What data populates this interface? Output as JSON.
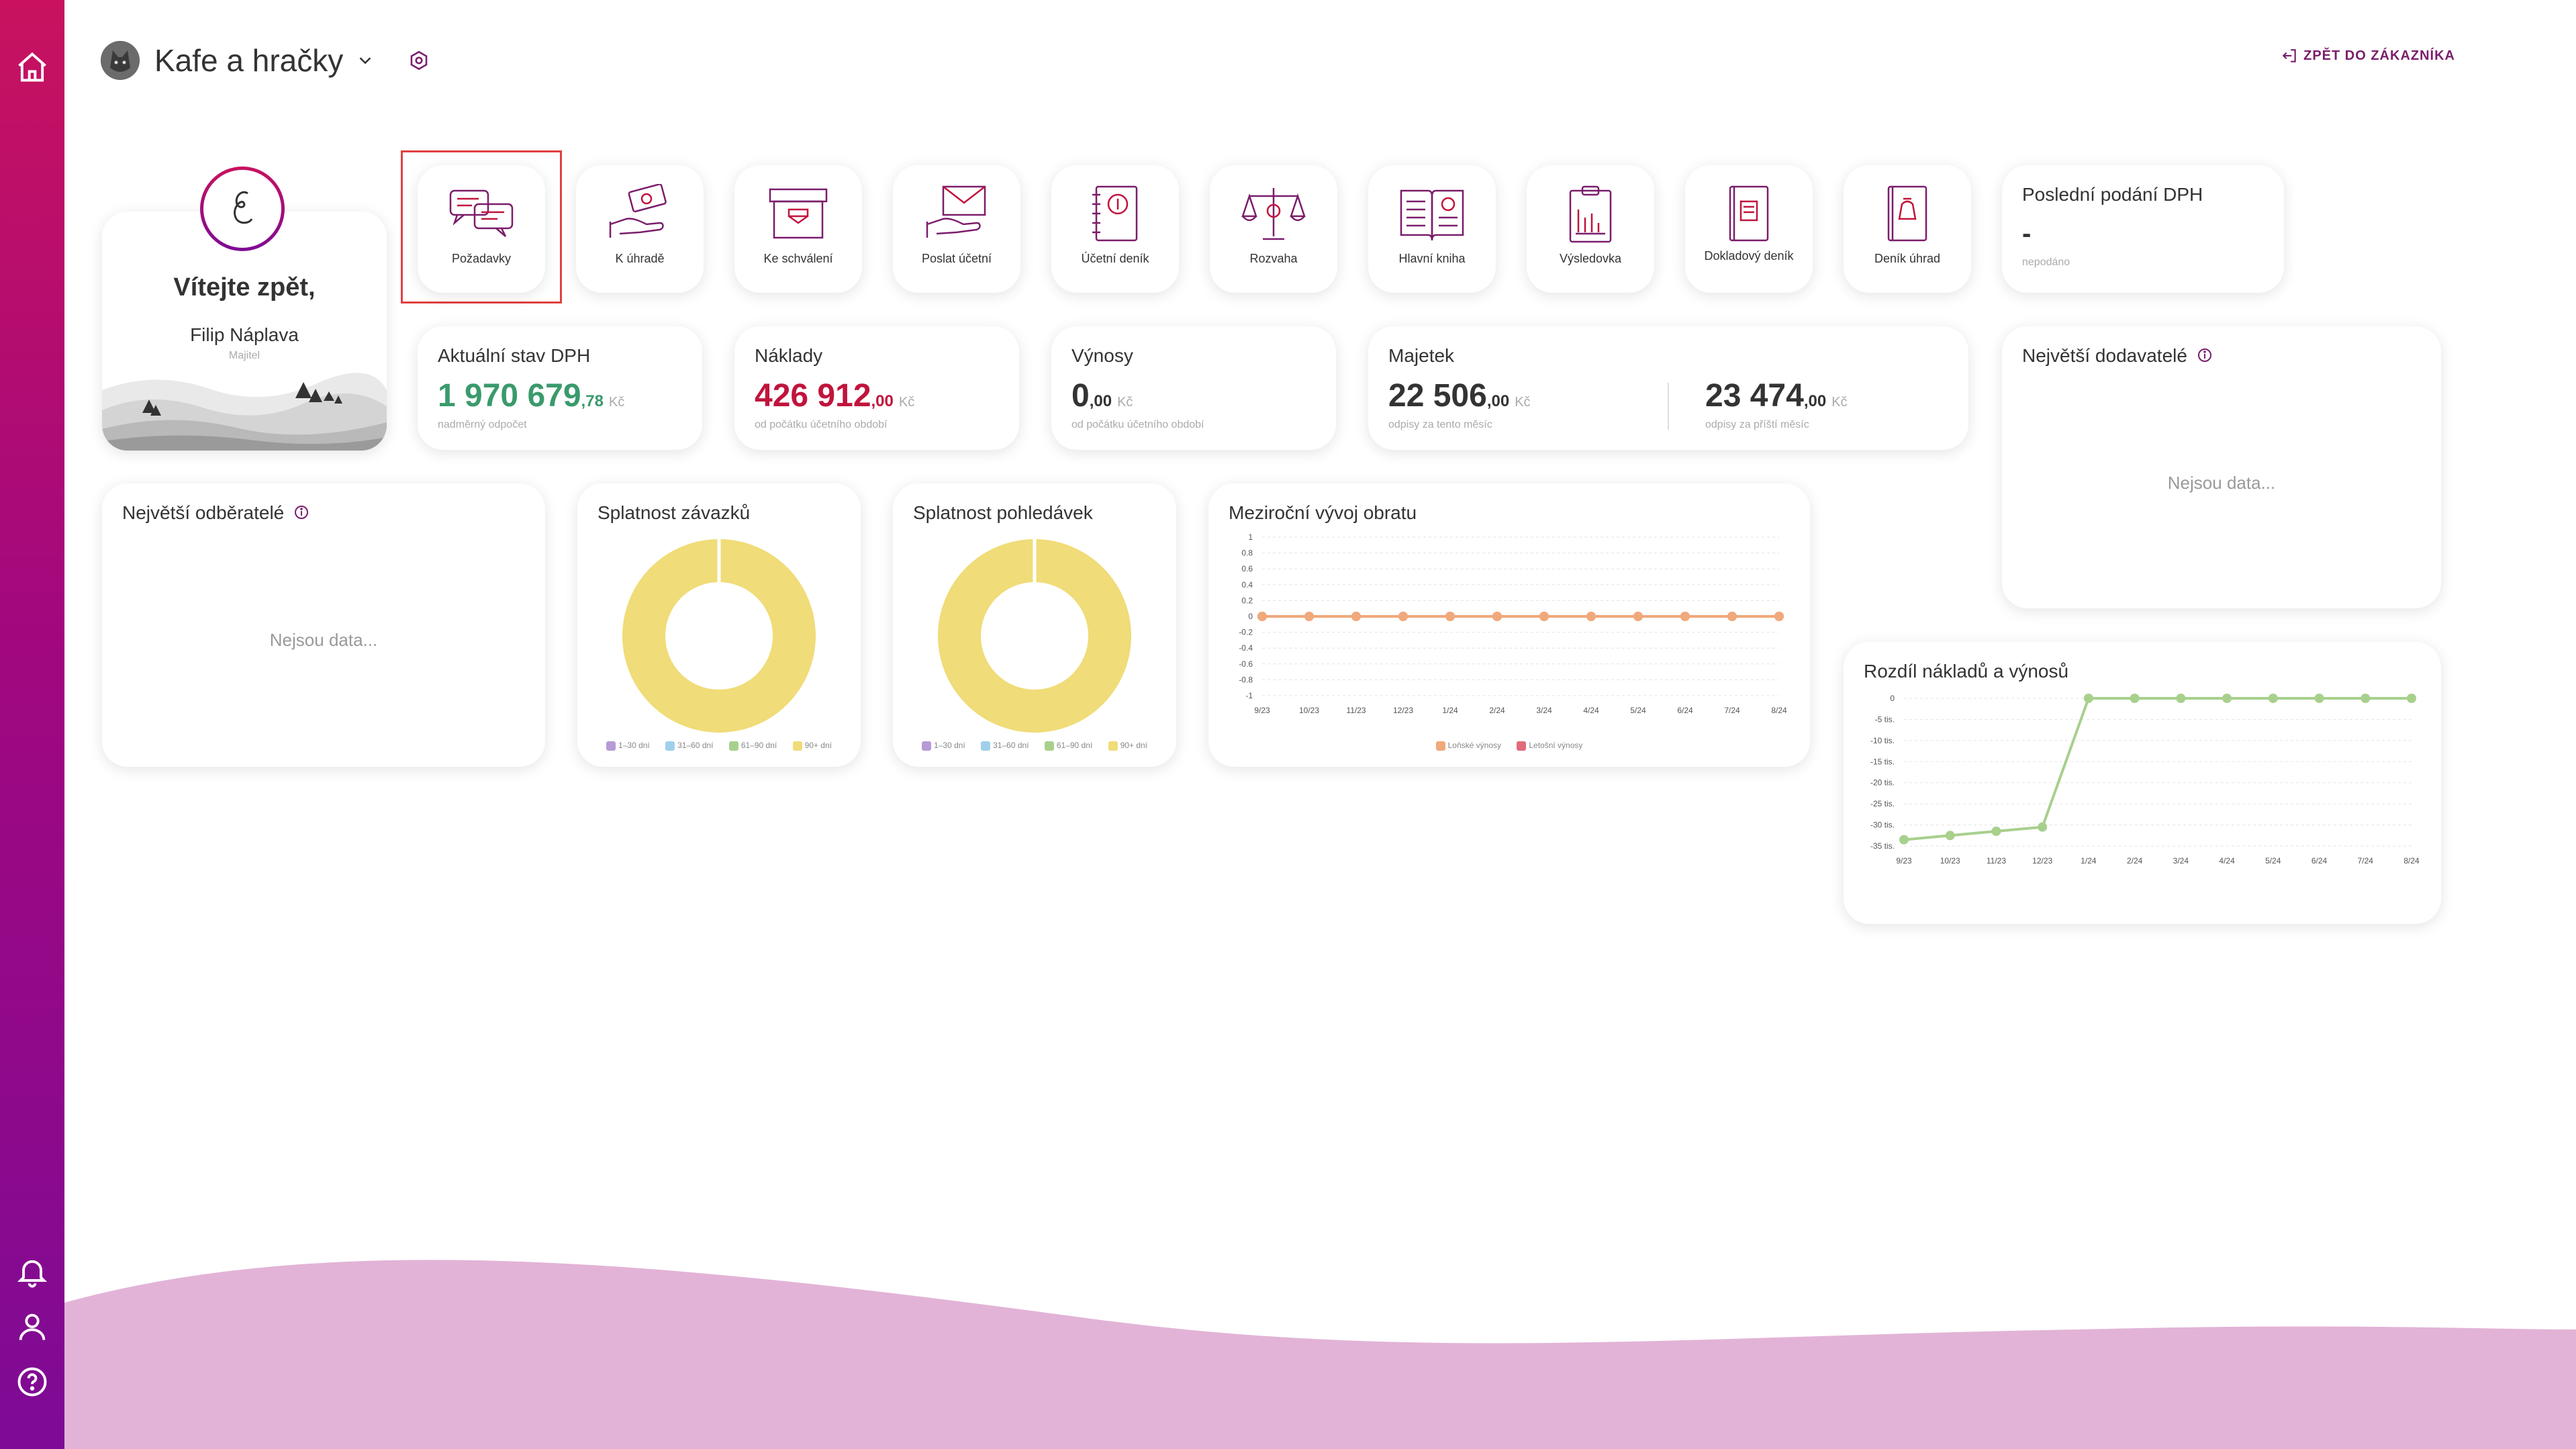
{
  "header": {
    "company_name": "Kafe a hračky",
    "back_link_label": "ZPĚT DO ZÁKAZNÍKA"
  },
  "welcome": {
    "greeting": "Vítejte zpět,",
    "user_name": "Filip Náplava",
    "user_role": "Majitel"
  },
  "tiles": [
    {
      "label": "Požadavky",
      "icon": "chat-bubbles-icon"
    },
    {
      "label": "K úhradě",
      "icon": "money-hand-icon"
    },
    {
      "label": "Ke schválení",
      "icon": "archive-box-icon"
    },
    {
      "label": "Poslat účetní",
      "icon": "envelope-hand-icon"
    },
    {
      "label": "Účetní deník",
      "icon": "dollar-notebook-icon"
    },
    {
      "label": "Rozvaha",
      "icon": "scales-icon"
    },
    {
      "label": "Hlavní kniha",
      "icon": "open-book-icon"
    },
    {
      "label": "Výsledovka",
      "icon": "clipboard-chart-icon"
    },
    {
      "label": "Dokladový deník",
      "icon": "document-book-icon"
    },
    {
      "label": "Deník úhrad",
      "icon": "payment-book-icon"
    }
  ],
  "last_vat": {
    "title": "Poslední podání DPH",
    "value": "-",
    "note": "nepodáno"
  },
  "vat": {
    "title": "Aktuální stav DPH",
    "int": "1 970 679",
    "dec": ",78",
    "currency": "Kč",
    "note": "nadměrný odpočet",
    "color": "#3a9a6c"
  },
  "costs": {
    "title": "Náklady",
    "int": "426 912",
    "dec": ",00",
    "currency": "Kč",
    "note": "od počátku účetního období",
    "color": "#c0143c"
  },
  "revenue": {
    "title": "Výnosy",
    "int": "0",
    "dec": ",00",
    "currency": "Kč",
    "note": "od počátku účetního období"
  },
  "assets": {
    "title": "Majetek",
    "a_int": "22 506",
    "a_dec": ",00",
    "a_currency": "Kč",
    "a_note": "odpisy za tento měsíc",
    "b_int": "23 474",
    "b_dec": ",00",
    "b_currency": "Kč",
    "b_note": "odpisy za příští měsíc"
  },
  "suppliers": {
    "title": "Největší dodavatelé",
    "empty": "Nejsou data..."
  },
  "customers": {
    "title": "Největší odběratelé",
    "empty": "Nejsou data..."
  },
  "payables": {
    "title": "Splatnost závazků"
  },
  "receivables": {
    "title": "Splatnost pohledávek"
  },
  "aging_legend": [
    {
      "label": "1–30 dní",
      "color": "#b79ad6"
    },
    {
      "label": "31–60 dní",
      "color": "#9fd0ea"
    },
    {
      "label": "61–90 dní",
      "color": "#a8d08d"
    },
    {
      "label": "90+ dní",
      "color": "#f0dc78"
    }
  ],
  "yoy": {
    "title": "Meziroční vývoj obratu",
    "legend_current": "Letošní výnosy",
    "legend_last": "Loňské výnosy"
  },
  "diff": {
    "title": "Rozdíl nákladů a výnosů"
  },
  "chart_data": [
    {
      "type": "pie",
      "title": "Splatnost závazků",
      "categories": [
        "1–30 dní",
        "31–60 dní",
        "61–90 dní",
        "90+ dní"
      ],
      "values": [
        0,
        0,
        0,
        100
      ]
    },
    {
      "type": "pie",
      "title": "Splatnost pohledávek",
      "categories": [
        "1–30 dní",
        "31–60 dní",
        "61–90 dní",
        "90+ dní"
      ],
      "values": [
        0,
        0,
        0,
        100
      ]
    },
    {
      "type": "line",
      "title": "Meziroční vývoj obratu",
      "categories": [
        "9/23",
        "10/23",
        "11/23",
        "12/23",
        "1/24",
        "2/24",
        "3/24",
        "4/24",
        "5/24",
        "6/24",
        "7/24",
        "8/24"
      ],
      "yticks": [
        "1",
        "0.8",
        "0.6",
        "0.4",
        "0.2",
        "0",
        "-0.2",
        "-0.4",
        "-0.6",
        "-0.8",
        "-1"
      ],
      "ylim": [
        -1,
        1
      ],
      "series": [
        {
          "name": "Loňské výnosy",
          "color": "#f0a97a",
          "values": [
            0,
            0,
            0,
            0,
            0,
            0,
            0,
            0,
            0,
            0,
            0,
            0
          ]
        },
        {
          "name": "Letošní výnosy",
          "color": "#e06b7a",
          "values": [
            0,
            0,
            0,
            0,
            0,
            0,
            0,
            0,
            0,
            0,
            0,
            0
          ]
        }
      ]
    },
    {
      "type": "line",
      "title": "Rozdíl nákladů a výnosů",
      "categories": [
        "9/23",
        "10/23",
        "11/23",
        "12/23",
        "1/24",
        "2/24",
        "3/24",
        "4/24",
        "5/24",
        "6/24",
        "7/24",
        "8/24"
      ],
      "yticks": [
        "0",
        "-5 tis.",
        "-10 tis.",
        "-15 tis.",
        "-20 tis.",
        "-25 tis.",
        "-30 tis.",
        "-35 tis."
      ],
      "ylim": [
        -35000,
        0
      ],
      "series": [
        {
          "color": "#a8d08d",
          "values": [
            -33500,
            -32500,
            -31500,
            -30500,
            0,
            0,
            0,
            0,
            0,
            0,
            0,
            0
          ]
        }
      ]
    }
  ]
}
